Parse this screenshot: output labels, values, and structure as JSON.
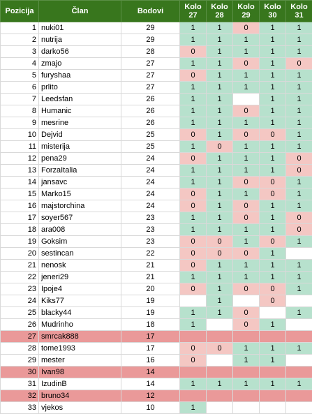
{
  "headers": [
    "Pozicija",
    "Član",
    "Bodovi",
    "Kolo 27",
    "Kolo 28",
    "Kolo 29",
    "Kolo 30",
    "Kolo 31"
  ],
  "colors": {
    "header": "#38761d",
    "positive": "#b7e1cd",
    "zero": "#f4c7c3",
    "highlight": "#ea9999"
  },
  "rows": [
    {
      "pos": "1",
      "name": "nuki01",
      "points": "29",
      "rounds": [
        "1",
        "1",
        "0",
        "1",
        "1"
      ]
    },
    {
      "pos": "2",
      "name": "nutrija",
      "points": "29",
      "rounds": [
        "1",
        "1",
        "1",
        "1",
        "1"
      ]
    },
    {
      "pos": "3",
      "name": "darko56",
      "points": "28",
      "rounds": [
        "0",
        "1",
        "1",
        "1",
        "1"
      ]
    },
    {
      "pos": "4",
      "name": "zmajo",
      "points": "27",
      "rounds": [
        "1",
        "1",
        "0",
        "1",
        "0"
      ]
    },
    {
      "pos": "5",
      "name": "furyshaa",
      "points": "27",
      "rounds": [
        "0",
        "1",
        "1",
        "1",
        "1"
      ]
    },
    {
      "pos": "6",
      "name": "prlito",
      "points": "27",
      "rounds": [
        "1",
        "1",
        "1",
        "1",
        "1"
      ]
    },
    {
      "pos": "7",
      "name": "Leedsfan",
      "points": "26",
      "rounds": [
        "1",
        "1",
        "",
        "1",
        "1"
      ]
    },
    {
      "pos": "8",
      "name": "Humanic",
      "points": "26",
      "rounds": [
        "1",
        "1",
        "0",
        "1",
        "1"
      ]
    },
    {
      "pos": "9",
      "name": "mesrine",
      "points": "26",
      "rounds": [
        "1",
        "1",
        "1",
        "1",
        "1"
      ]
    },
    {
      "pos": "10",
      "name": "Dejvid",
      "points": "25",
      "rounds": [
        "0",
        "1",
        "0",
        "0",
        "1"
      ]
    },
    {
      "pos": "11",
      "name": "misterija",
      "points": "25",
      "rounds": [
        "1",
        "0",
        "1",
        "1",
        "1"
      ]
    },
    {
      "pos": "12",
      "name": "pena29",
      "points": "24",
      "rounds": [
        "0",
        "1",
        "1",
        "1",
        "0"
      ]
    },
    {
      "pos": "13",
      "name": "ForzaItalia",
      "points": "24",
      "rounds": [
        "1",
        "1",
        "1",
        "1",
        "0"
      ]
    },
    {
      "pos": "14",
      "name": "jansavc",
      "points": "24",
      "rounds": [
        "1",
        "1",
        "0",
        "0",
        "1"
      ]
    },
    {
      "pos": "15",
      "name": "Marko15",
      "points": "24",
      "rounds": [
        "0",
        "1",
        "1",
        "0",
        "1"
      ]
    },
    {
      "pos": "16",
      "name": "majstorchina",
      "points": "24",
      "rounds": [
        "0",
        "1",
        "0",
        "1",
        "1"
      ]
    },
    {
      "pos": "17",
      "name": "soyer567",
      "points": "23",
      "rounds": [
        "1",
        "1",
        "0",
        "1",
        "0"
      ]
    },
    {
      "pos": "18",
      "name": "ara008",
      "points": "23",
      "rounds": [
        "1",
        "1",
        "1",
        "1",
        "0"
      ]
    },
    {
      "pos": "19",
      "name": "Goksim",
      "points": "23",
      "rounds": [
        "0",
        "0",
        "1",
        "0",
        "1"
      ]
    },
    {
      "pos": "20",
      "name": "sestincan",
      "points": "22",
      "rounds": [
        "0",
        "0",
        "0",
        "1",
        ""
      ]
    },
    {
      "pos": "21",
      "name": "nenosk",
      "points": "21",
      "rounds": [
        "0",
        "1",
        "1",
        "1",
        "1"
      ]
    },
    {
      "pos": "22",
      "name": "jeneri29",
      "points": "21",
      "rounds": [
        "1",
        "1",
        "1",
        "1",
        "1"
      ]
    },
    {
      "pos": "23",
      "name": "Ipoje4",
      "points": "20",
      "rounds": [
        "0",
        "1",
        "0",
        "0",
        "1"
      ]
    },
    {
      "pos": "24",
      "name": "Kiks77",
      "points": "19",
      "rounds": [
        "",
        "1",
        "",
        "0",
        ""
      ]
    },
    {
      "pos": "25",
      "name": "blacky44",
      "points": "19",
      "rounds": [
        "1",
        "1",
        "0",
        "",
        "1"
      ]
    },
    {
      "pos": "26",
      "name": "Mudrinho",
      "points": "18",
      "rounds": [
        "1",
        "",
        "0",
        "1",
        ""
      ]
    },
    {
      "pos": "27",
      "name": "smrcak888",
      "points": "17",
      "rounds": [
        "",
        "",
        "",
        "",
        ""
      ],
      "hl": true
    },
    {
      "pos": "28",
      "name": "tome1993",
      "points": "17",
      "rounds": [
        "0",
        "0",
        "1",
        "1",
        "1"
      ]
    },
    {
      "pos": "29",
      "name": "mester",
      "points": "16",
      "rounds": [
        "0",
        "",
        "1",
        "1",
        ""
      ]
    },
    {
      "pos": "30",
      "name": "Ivan98",
      "points": "14",
      "rounds": [
        "",
        "",
        "",
        "",
        ""
      ],
      "hl": true
    },
    {
      "pos": "31",
      "name": "IzudinB",
      "points": "14",
      "rounds": [
        "1",
        "1",
        "1",
        "1",
        "1"
      ]
    },
    {
      "pos": "32",
      "name": "bruno34",
      "points": "12",
      "rounds": [
        "",
        "",
        "",
        "",
        ""
      ],
      "hl": true
    },
    {
      "pos": "33",
      "name": "vjekos",
      "points": "10",
      "rounds": [
        "1",
        "",
        "",
        "",
        ""
      ]
    }
  ]
}
